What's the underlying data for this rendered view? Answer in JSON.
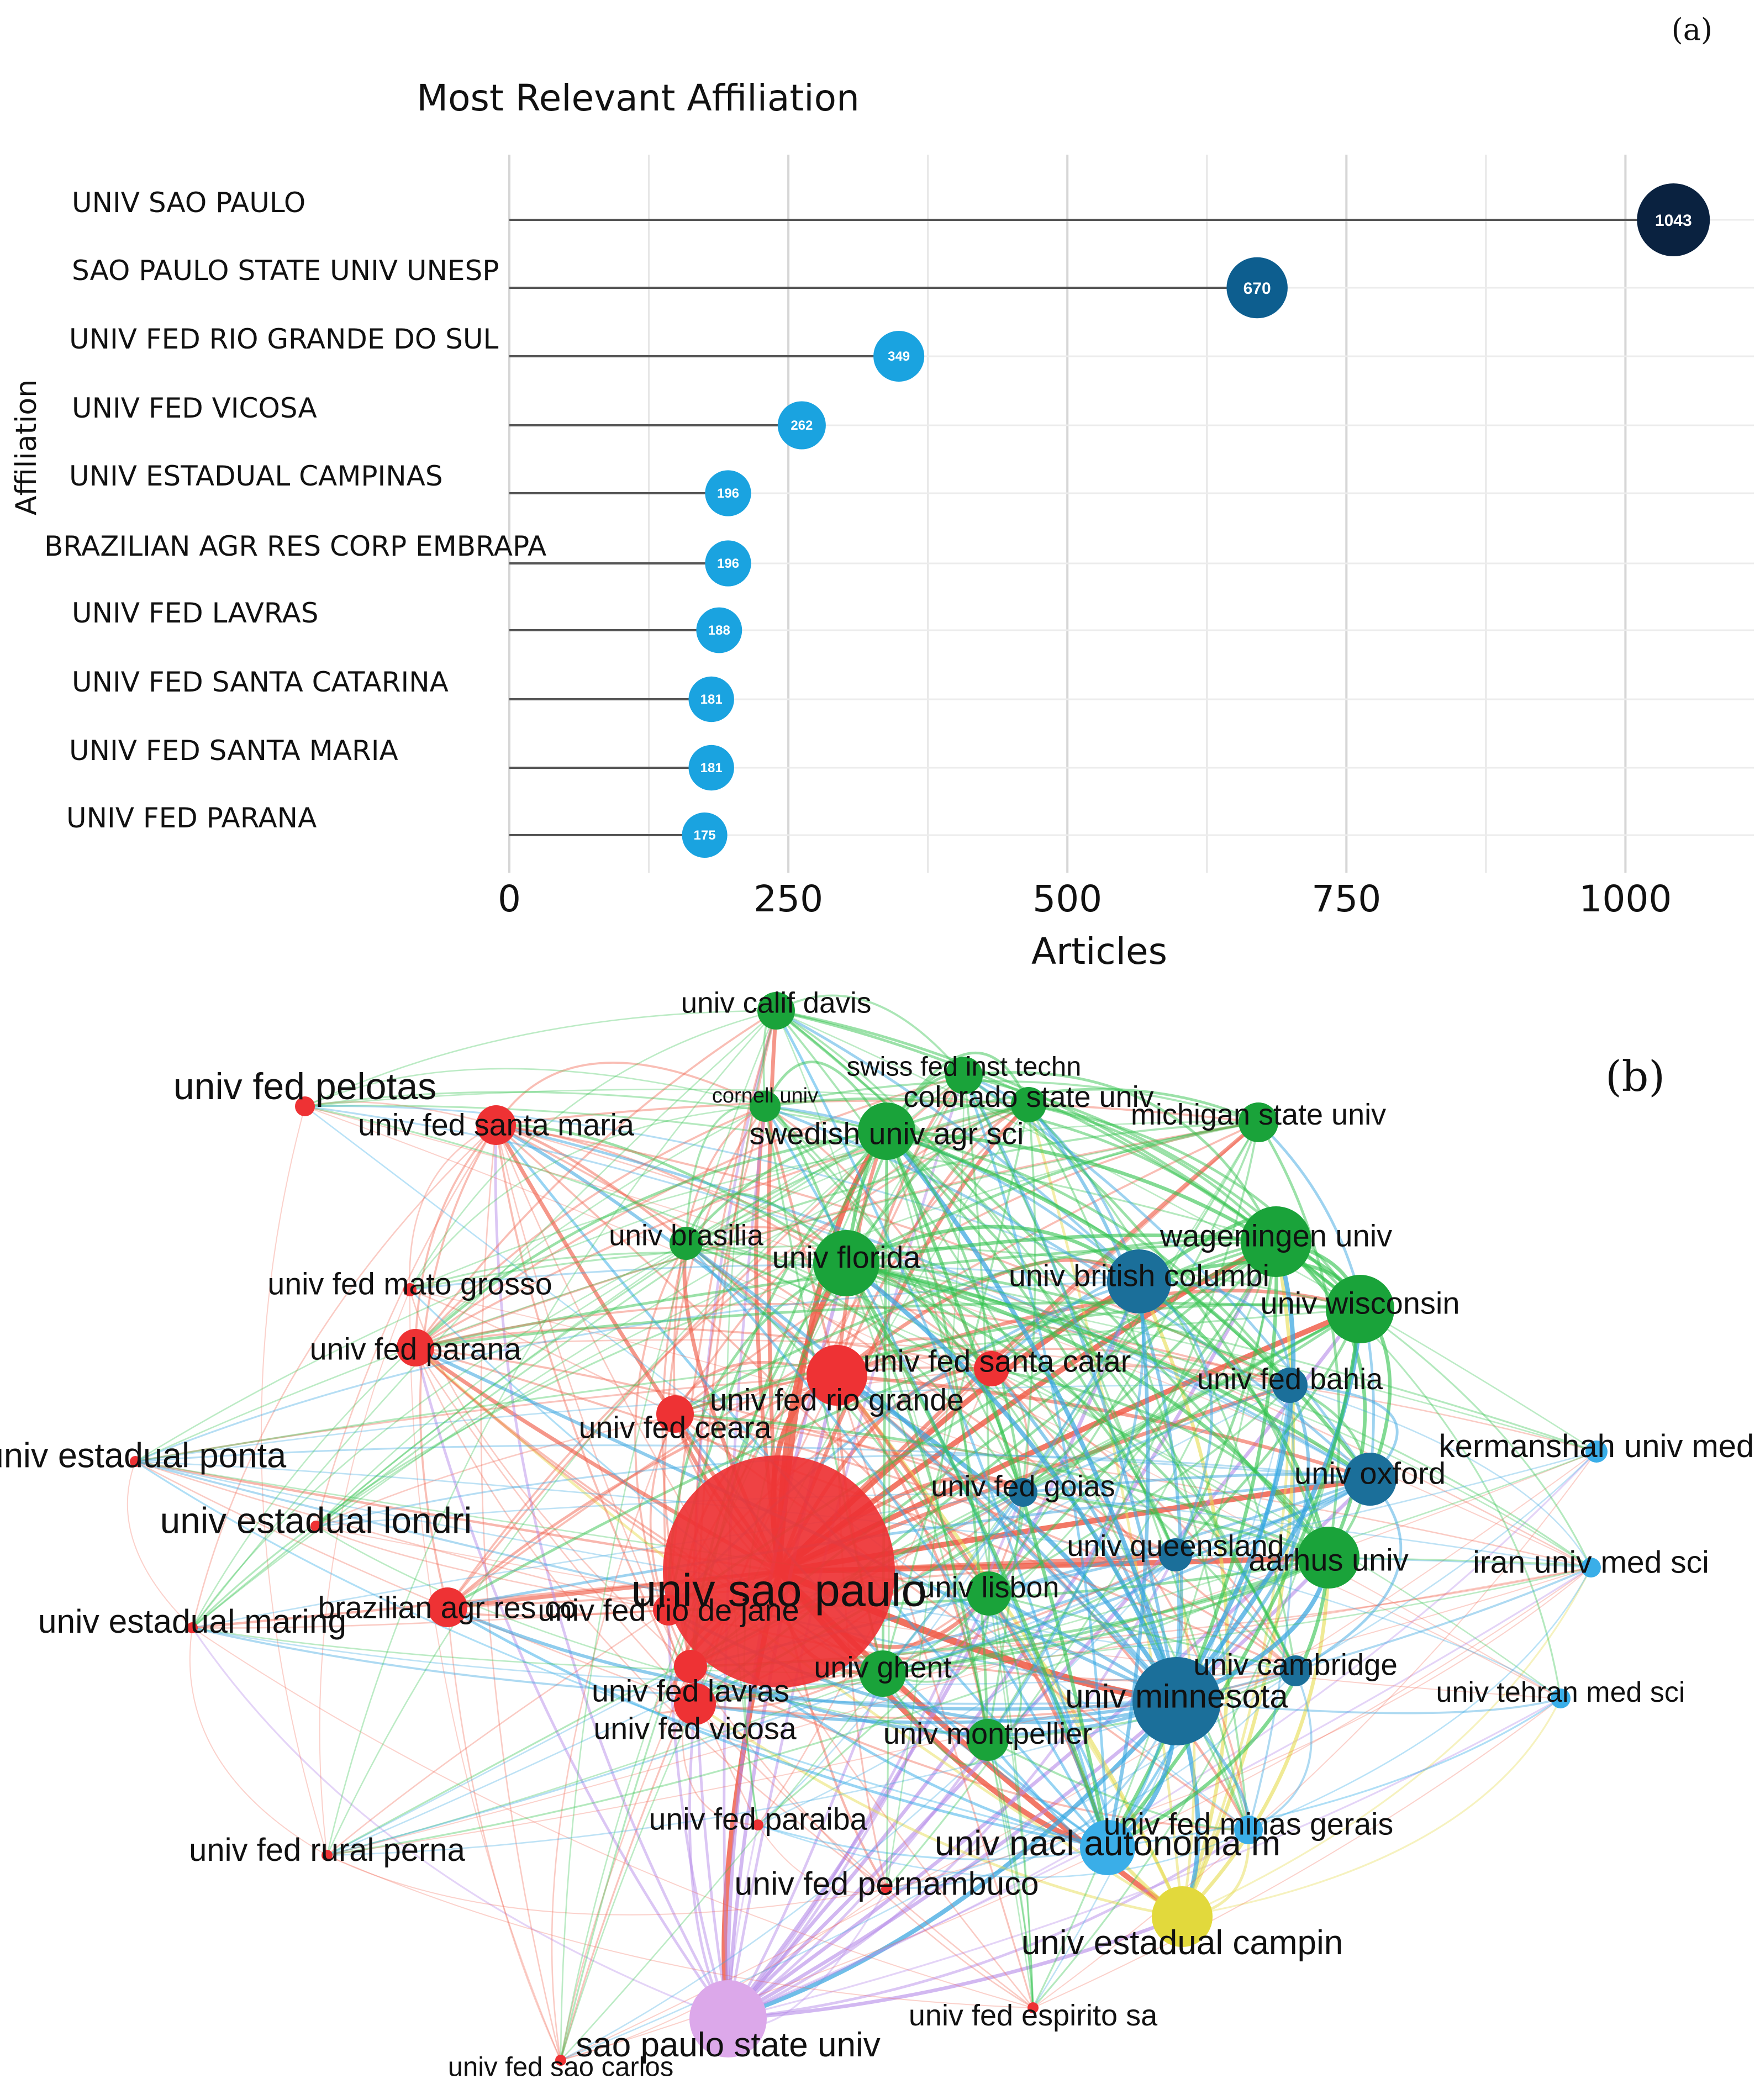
{
  "panel_a_label": "(a)",
  "panel_b_label": "(b)",
  "chart_data": [
    {
      "type": "lollipop",
      "title": "Most Relevant Affiliation",
      "xlabel": "Articles",
      "ylabel": "Affiliation",
      "xlim": [
        0,
        1120
      ],
      "xticks": [
        0,
        250,
        500,
        750,
        1000
      ],
      "xtick_labels": [
        "0",
        "250",
        "500",
        "750",
        "1000"
      ],
      "categories": [
        "UNIV SAO PAULO",
        "SAO PAULO STATE UNIV UNESP",
        "UNIV FED RIO GRANDE DO SUL",
        "UNIV FED VICOSA",
        "UNIV ESTADUAL CAMPINAS",
        "BRAZILIAN AGR RES CORP EMBRAPA",
        "UNIV FED LAVRAS",
        "UNIV FED SANTA CATARINA",
        "UNIV FED SANTA MARIA",
        "UNIV FED PARANA"
      ],
      "values": [
        1043,
        670,
        349,
        262,
        196,
        196,
        188,
        181,
        181,
        175
      ],
      "value_labels": [
        "1043",
        "670",
        "349",
        "262",
        "196",
        "196",
        "188",
        "181",
        "181",
        "175"
      ],
      "colors": {
        "high": "#0a2240",
        "mid": "#0d5e8f",
        "low": "#1aa3e0"
      },
      "grid": true
    },
    {
      "type": "network",
      "title": "",
      "clusters": {
        "red": "#e8302f",
        "green": "#1aa33a",
        "blue": "#1d8fd6",
        "yellow": "#e0d23a",
        "violet": "#d8a6e6",
        "teal": "#1b6f9a"
      },
      "nodes": [
        {
          "label": "univ sao paulo",
          "cluster": "red",
          "size": 5
        },
        {
          "label": "sao paulo state univ",
          "cluster": "violet",
          "size": 3
        },
        {
          "label": "univ estadual campin",
          "cluster": "yellow",
          "size": 3
        },
        {
          "label": "univ fed rio grande",
          "cluster": "red",
          "size": 3
        },
        {
          "label": "univ fed vicosa",
          "cluster": "red",
          "size": 2
        },
        {
          "label": "univ fed lavras",
          "cluster": "red",
          "size": 2
        },
        {
          "label": "univ fed santa catar",
          "cluster": "red",
          "size": 2
        },
        {
          "label": "univ fed santa maria",
          "cluster": "red",
          "size": 2
        },
        {
          "label": "univ fed parana",
          "cluster": "red",
          "size": 2
        },
        {
          "label": "brazilian agr res co",
          "cluster": "red",
          "size": 2
        },
        {
          "label": "univ fed rio de jane",
          "cluster": "red",
          "size": 2
        },
        {
          "label": "univ fed ceara",
          "cluster": "red",
          "size": 2
        },
        {
          "label": "univ fed pelotas",
          "cluster": "red",
          "size": 1
        },
        {
          "label": "univ fed mato grosso",
          "cluster": "red",
          "size": 1
        },
        {
          "label": "univ estadual ponta",
          "cluster": "red",
          "size": 1
        },
        {
          "label": "univ estadual londri",
          "cluster": "red",
          "size": 1
        },
        {
          "label": "univ estadual maring",
          "cluster": "red",
          "size": 1
        },
        {
          "label": "univ fed rural perna",
          "cluster": "red",
          "size": 1
        },
        {
          "label": "univ fed paraiba",
          "cluster": "red",
          "size": 1
        },
        {
          "label": "univ fed pernambuco",
          "cluster": "red",
          "size": 1
        },
        {
          "label": "univ fed sao carlos",
          "cluster": "red",
          "size": 1
        },
        {
          "label": "univ fed espirito sa",
          "cluster": "red",
          "size": 1
        },
        {
          "label": "univ brasilia",
          "cluster": "green",
          "size": 2
        },
        {
          "label": "univ calif davis",
          "cluster": "green",
          "size": 2
        },
        {
          "label": "swiss fed inst techn",
          "cluster": "green",
          "size": 2
        },
        {
          "label": "cornell univ",
          "cluster": "green",
          "size": 2
        },
        {
          "label": "colorado state univ",
          "cluster": "green",
          "size": 2
        },
        {
          "label": "swedish univ agr sci",
          "cluster": "green",
          "size": 3
        },
        {
          "label": "michigan state univ",
          "cluster": "green",
          "size": 2
        },
        {
          "label": "univ florida",
          "cluster": "green",
          "size": 3
        },
        {
          "label": "wageningen univ",
          "cluster": "green",
          "size": 3
        },
        {
          "label": "univ wisconsin",
          "cluster": "green",
          "size": 3
        },
        {
          "label": "aarhus univ",
          "cluster": "green",
          "size": 3
        },
        {
          "label": "univ ghent",
          "cluster": "green",
          "size": 2
        },
        {
          "label": "univ montpellier",
          "cluster": "green",
          "size": 2
        },
        {
          "label": "univ lisbon",
          "cluster": "green",
          "size": 2
        },
        {
          "label": "univ british columbi",
          "cluster": "teal",
          "size": 3
        },
        {
          "label": "univ minnesota",
          "cluster": "teal",
          "size": 4
        },
        {
          "label": "univ oxford",
          "cluster": "teal",
          "size": 3
        },
        {
          "label": "univ fed bahia",
          "cluster": "teal",
          "size": 2
        },
        {
          "label": "univ fed goias",
          "cluster": "teal",
          "size": 2
        },
        {
          "label": "univ queensland",
          "cluster": "teal",
          "size": 2
        },
        {
          "label": "univ cambridge",
          "cluster": "teal",
          "size": 2
        },
        {
          "label": "univ nacl autonoma m",
          "cluster": "blue",
          "size": 3
        },
        {
          "label": "univ fed minas gerais",
          "cluster": "blue",
          "size": 2
        },
        {
          "label": "kermanshah univ med",
          "cluster": "blue",
          "size": 1
        },
        {
          "label": "iran univ med sci",
          "cluster": "blue",
          "size": 1
        },
        {
          "label": "univ tehran med sci",
          "cluster": "blue",
          "size": 1
        }
      ]
    }
  ]
}
